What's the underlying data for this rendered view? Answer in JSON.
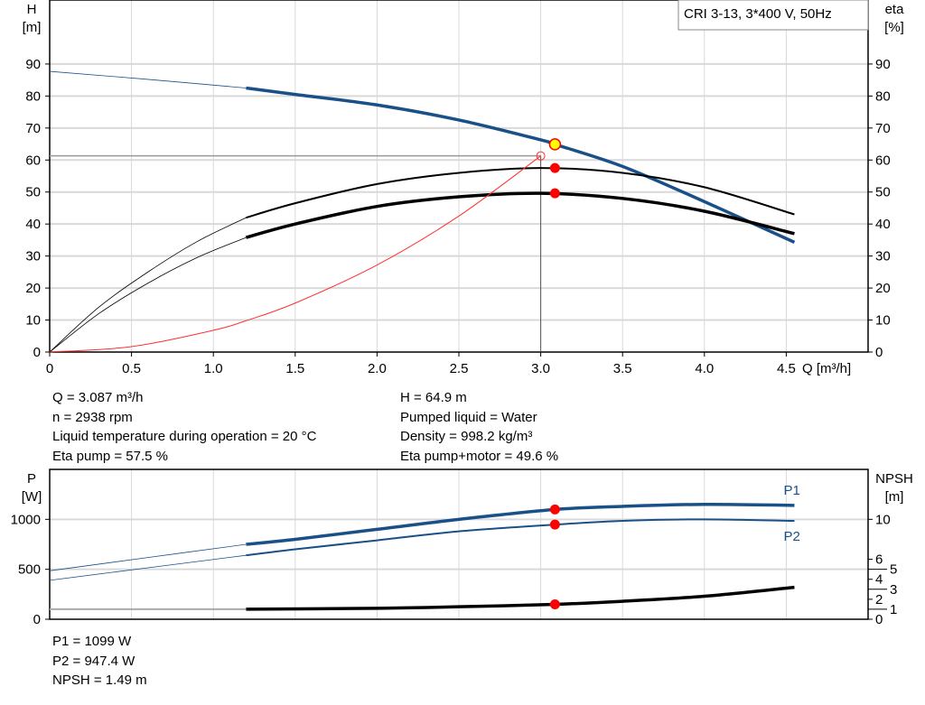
{
  "colors": {
    "head": "#1a5088",
    "power": "#1a5088",
    "eta": "#000000",
    "npsh": "#000000",
    "system": "#ff3030",
    "point": "#ff0000",
    "duty_point": "#ffff00",
    "grid": "#d9d9d9"
  },
  "legend": "CRI 3-13, 3*400 V, 50Hz",
  "info_top": {
    "left": [
      "Q = 3.087 m³/h",
      "n = 2938 rpm",
      "Liquid temperature during operation = 20 °C",
      "Eta pump = 57.5 %"
    ],
    "right": [
      "H = 64.9 m",
      "Pumped liquid = Water",
      "Density = 998.2 kg/m³",
      "Eta pump+motor = 49.6 %"
    ]
  },
  "info_bottom": [
    "P1 = 1099 W",
    "P2 = 947.4 W",
    "NPSH = 1.49 m"
  ],
  "chart_data": [
    {
      "type": "line",
      "xlabel": "Q [m³/h]",
      "ylabel": [
        "H",
        "[m]"
      ],
      "y2label": [
        "eta",
        "[%]"
      ],
      "xlim": [
        0,
        5.0
      ],
      "ylim": [
        0,
        110
      ],
      "y2lim": [
        0,
        110
      ],
      "xticks": [
        "0",
        "0.5",
        "1.0",
        "1.5",
        "2.0",
        "2.5",
        "3.0",
        "3.5",
        "4.0",
        "4.5"
      ],
      "yticks": [
        "0",
        "10",
        "20",
        "30",
        "40",
        "50",
        "60",
        "70",
        "80",
        "90"
      ],
      "y2ticks": [
        "0",
        "10",
        "20",
        "30",
        "40",
        "50",
        "60",
        "70",
        "80",
        "90"
      ],
      "grid": true,
      "series": [
        {
          "key": "H",
          "axis": "left",
          "extrapolated": {
            "x": [
              0,
              0.6,
              1.2
            ],
            "y": [
              87.7,
              85.2,
              82.5
            ]
          },
          "x": [
            1.2,
            1.5,
            2.0,
            2.5,
            3.0,
            3.087,
            3.5,
            4.0,
            4.55
          ],
          "y": [
            82.5,
            80.5,
            77.2,
            72.5,
            66.3,
            64.9,
            58.0,
            47.0,
            34.3
          ]
        },
        {
          "key": "eta_pump",
          "axis": "right",
          "extrapolated": {
            "x": [
              0,
              0.3,
              0.6,
              0.9,
              1.2
            ],
            "y": [
              0,
              14,
              25,
              34.5,
              42
            ]
          },
          "x": [
            1.2,
            1.5,
            2.0,
            2.5,
            3.0,
            3.5,
            4.0,
            4.55
          ],
          "y": [
            42,
            46.5,
            52.5,
            56,
            57.5,
            56,
            51.5,
            43
          ]
        },
        {
          "key": "eta_pump_motor",
          "axis": "right",
          "extrapolated": {
            "x": [
              0,
              0.3,
              0.6,
              0.9,
              1.2
            ],
            "y": [
              0,
              12,
              21.5,
              29.5,
              35.8
            ]
          },
          "x": [
            1.2,
            1.5,
            2.0,
            2.5,
            3.0,
            3.5,
            4.0,
            4.55
          ],
          "y": [
            35.8,
            40,
            45.5,
            48.5,
            49.6,
            48,
            44,
            37
          ]
        },
        {
          "key": "system",
          "axis": "left",
          "x": [
            0,
            0.5,
            1.0,
            1.2,
            1.5,
            2.0,
            2.5,
            3.0
          ],
          "y": [
            0,
            1.7,
            6.8,
            9.8,
            15.3,
            27.2,
            42.5,
            61.3
          ]
        }
      ],
      "setpoint": {
        "x": 3.0,
        "y": 61.3
      },
      "operating_points": [
        {
          "key": "H",
          "x": 3.087,
          "y": 64.9,
          "duty": true
        },
        {
          "key": "eta_pump",
          "x": 3.087,
          "y": 57.5
        },
        {
          "key": "eta_pump_motor",
          "x": 3.087,
          "y": 49.6
        }
      ]
    },
    {
      "type": "line",
      "ylabel": [
        "P",
        "[W]"
      ],
      "y2label": [
        "NPSH",
        "[m]"
      ],
      "xlim": [
        0,
        5.0
      ],
      "ylim": [
        0,
        1500
      ],
      "y2lim": [
        0,
        15
      ],
      "yticks": [
        "0",
        "500",
        "1000"
      ],
      "y2ticks": [
        "0",
        "1",
        "2",
        "3",
        "4",
        "5",
        "6",
        "10"
      ],
      "grid": true,
      "series": [
        {
          "key": "P1",
          "name": "P1",
          "axis": "left",
          "extrapolated": {
            "x": [
              0,
              0.6,
              1.2
            ],
            "y": [
              485,
              618,
              750
            ]
          },
          "x": [
            1.2,
            1.5,
            2.0,
            2.5,
            3.087,
            3.5,
            4.0,
            4.55
          ],
          "y": [
            750,
            800,
            900,
            1000,
            1099,
            1130,
            1150,
            1140
          ]
        },
        {
          "key": "P2",
          "name": "P2",
          "axis": "left",
          "extrapolated": {
            "x": [
              0,
              0.6,
              1.2
            ],
            "y": [
              390,
              515,
              640
            ]
          },
          "x": [
            1.2,
            1.5,
            2.0,
            2.5,
            3.087,
            3.5,
            4.0,
            4.55
          ],
          "y": [
            640,
            700,
            790,
            880,
            947.4,
            985,
            1000,
            985
          ]
        },
        {
          "key": "NPSH",
          "axis": "right",
          "extrapolated": {
            "x": [
              0,
              1.2
            ],
            "y": [
              1.0,
              1.0
            ]
          },
          "x": [
            1.2,
            2.0,
            2.5,
            3.087,
            3.5,
            4.0,
            4.55
          ],
          "y": [
            1.0,
            1.1,
            1.25,
            1.49,
            1.8,
            2.3,
            3.2
          ]
        }
      ],
      "operating_points": [
        {
          "key": "P1",
          "x": 3.087,
          "y": 1099
        },
        {
          "key": "P2",
          "x": 3.087,
          "y": 947.4
        },
        {
          "key": "NPSH",
          "x": 3.087,
          "y": 1.49
        }
      ]
    }
  ]
}
